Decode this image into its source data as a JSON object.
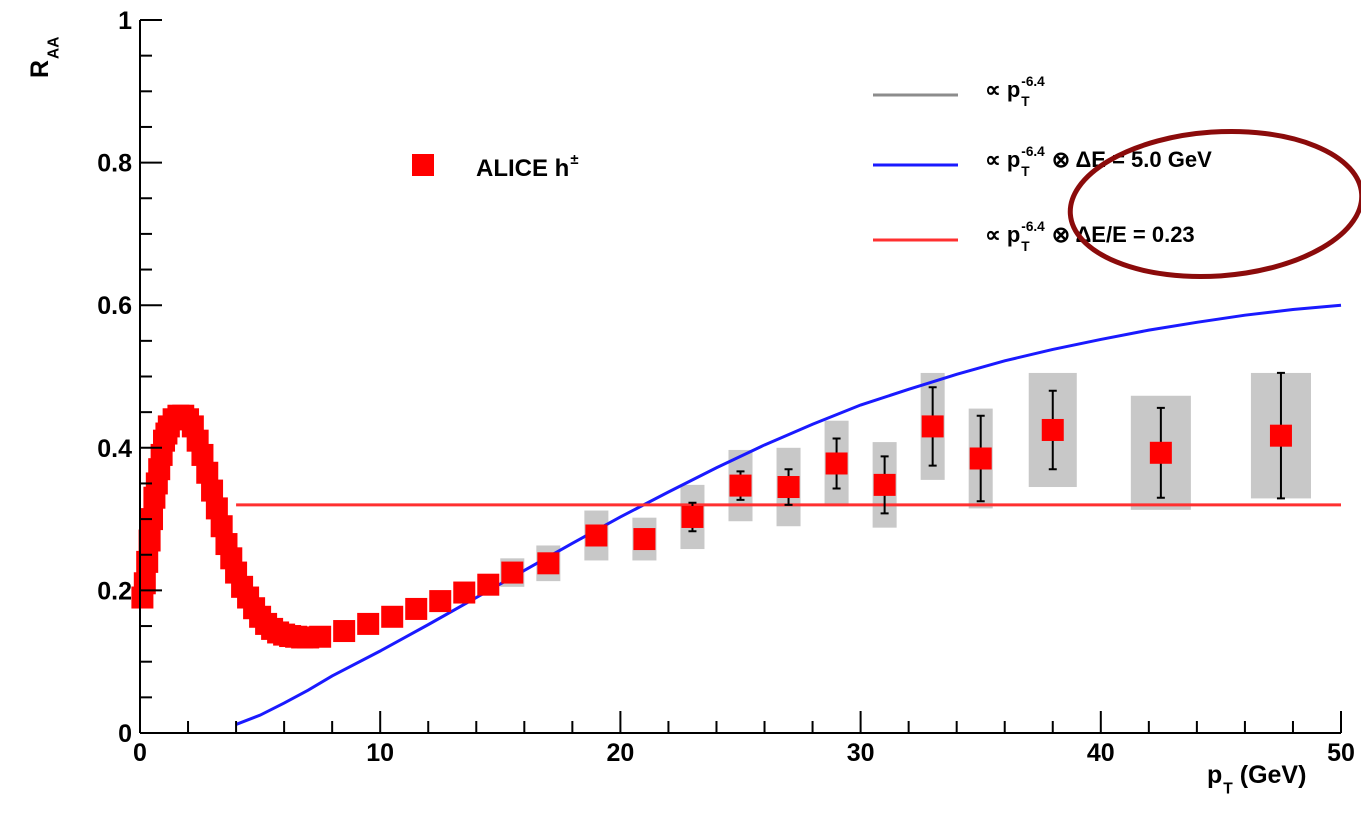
{
  "chart_data": {
    "type": "scatter",
    "ylabel": {
      "pre": "R",
      "sub": "AA"
    },
    "xlabel": {
      "pre": "p",
      "sub": "T",
      "post": "(GeV)"
    },
    "xlim": [
      0,
      50
    ],
    "ylim": [
      0,
      1
    ],
    "xticks": [
      0,
      10,
      20,
      30,
      40,
      50
    ],
    "yticks": [
      0,
      0.2,
      0.4,
      0.6,
      0.8,
      1
    ],
    "xminorticks": [
      2,
      4,
      6,
      8,
      12,
      14,
      16,
      18,
      22,
      24,
      26,
      28,
      32,
      34,
      36,
      38,
      42,
      44,
      46,
      48
    ],
    "yminorticks": [
      0.05,
      0.1,
      0.15,
      0.25,
      0.3,
      0.35,
      0.45,
      0.5,
      0.55,
      0.65,
      0.7,
      0.75,
      0.85,
      0.9,
      0.95
    ],
    "series": [
      {
        "name": {
          "pre": "ALICE h",
          "sup": "±"
        },
        "kind": "points",
        "color": "#ff0000",
        "err_color": "#c8c8c8",
        "x": [
          0.1,
          0.2,
          0.3,
          0.4,
          0.5,
          0.6,
          0.7,
          0.8,
          0.9,
          1.0,
          1.1,
          1.2,
          1.4,
          1.6,
          1.8,
          2.0,
          2.2,
          2.4,
          2.6,
          2.8,
          3.0,
          3.2,
          3.4,
          3.6,
          3.8,
          4.0,
          4.25,
          4.5,
          4.75,
          5.0,
          5.25,
          5.5,
          5.75,
          6.0,
          6.25,
          6.5,
          6.75,
          7.0,
          7.5,
          8.5,
          9.5,
          10.5,
          11.5,
          12.5,
          13.5,
          14.5,
          15.5,
          17,
          19,
          21,
          23,
          25,
          27,
          29,
          31,
          33,
          35,
          38,
          42.5,
          47.5
        ],
        "values": [
          0.19,
          0.21,
          0.24,
          0.27,
          0.3,
          0.33,
          0.35,
          0.37,
          0.39,
          0.41,
          0.42,
          0.43,
          0.44,
          0.445,
          0.445,
          0.44,
          0.43,
          0.41,
          0.39,
          0.365,
          0.34,
          0.315,
          0.29,
          0.265,
          0.245,
          0.225,
          0.205,
          0.19,
          0.175,
          0.163,
          0.153,
          0.146,
          0.141,
          0.138,
          0.136,
          0.135,
          0.134,
          0.134,
          0.135,
          0.143,
          0.153,
          0.163,
          0.174,
          0.185,
          0.197,
          0.208,
          0.225,
          0.238,
          0.277,
          0.272,
          0.303,
          0.347,
          0.345,
          0.378,
          0.348,
          0.43,
          0.385,
          0.425,
          0.393,
          0.417
        ],
        "stat_err": [
          null,
          null,
          null,
          null,
          null,
          null,
          null,
          null,
          null,
          null,
          null,
          null,
          null,
          null,
          null,
          null,
          null,
          null,
          null,
          null,
          null,
          null,
          null,
          null,
          null,
          null,
          null,
          null,
          null,
          null,
          null,
          null,
          null,
          null,
          null,
          null,
          null,
          null,
          null,
          null,
          null,
          null,
          null,
          null,
          null,
          null,
          null,
          null,
          null,
          null,
          0.02,
          0.02,
          0.025,
          0.035,
          0.04,
          0.055,
          0.06,
          0.055,
          0.063,
          0.088
        ],
        "sys_err": [
          null,
          null,
          null,
          null,
          null,
          null,
          null,
          null,
          null,
          null,
          null,
          null,
          null,
          null,
          null,
          null,
          null,
          null,
          null,
          null,
          null,
          null,
          null,
          null,
          null,
          null,
          null,
          null,
          null,
          null,
          null,
          null,
          null,
          null,
          null,
          null,
          null,
          null,
          null,
          null,
          null,
          null,
          null,
          null,
          null,
          null,
          0.02,
          0.025,
          0.035,
          0.03,
          0.045,
          0.05,
          0.055,
          0.06,
          0.06,
          0.075,
          0.07,
          0.08,
          0.08,
          0.088
        ],
        "x_err": [
          null,
          null,
          null,
          null,
          null,
          null,
          null,
          null,
          null,
          null,
          null,
          null,
          null,
          null,
          null,
          null,
          null,
          null,
          null,
          null,
          null,
          null,
          null,
          null,
          null,
          null,
          null,
          null,
          null,
          null,
          null,
          null,
          null,
          null,
          null,
          null,
          null,
          null,
          null,
          null,
          null,
          null,
          null,
          null,
          null,
          null,
          0.5,
          0.5,
          0.5,
          0.5,
          0.5,
          0.5,
          0.5,
          0.5,
          0.5,
          0.5,
          0.5,
          1,
          1.25,
          1.25
        ]
      },
      {
        "name": {
          "pre": "∝ p",
          "sub": "T",
          "sup": "-6.4"
        },
        "kind": "line",
        "color": "#8c8c8c",
        "x": [],
        "values": []
      },
      {
        "name": {
          "pre": "∝ p",
          "sub": "T",
          "sup": "-6.4",
          "post": "⊗  ΔE = 5.0 GeV"
        },
        "kind": "line",
        "color": "#1a1aff",
        "x": [
          4,
          5,
          6,
          7,
          8,
          10,
          12,
          14,
          16,
          18,
          20,
          22,
          24,
          26,
          28,
          30,
          32,
          34,
          36,
          38,
          40,
          42,
          44,
          46,
          48,
          50
        ],
        "values": [
          0.012,
          0.025,
          0.042,
          0.06,
          0.08,
          0.115,
          0.152,
          0.19,
          0.228,
          0.266,
          0.303,
          0.338,
          0.372,
          0.404,
          0.433,
          0.46,
          0.482,
          0.503,
          0.522,
          0.538,
          0.552,
          0.565,
          0.576,
          0.586,
          0.594,
          0.6
        ]
      },
      {
        "name": {
          "pre": "∝ p",
          "sub": "T",
          "sup": "-6.4",
          "post": "⊗  ΔE/E = 0.23"
        },
        "kind": "line",
        "color": "#ff3030",
        "x": [
          4,
          50
        ],
        "values": [
          0.32,
          0.32
        ]
      }
    ]
  }
}
